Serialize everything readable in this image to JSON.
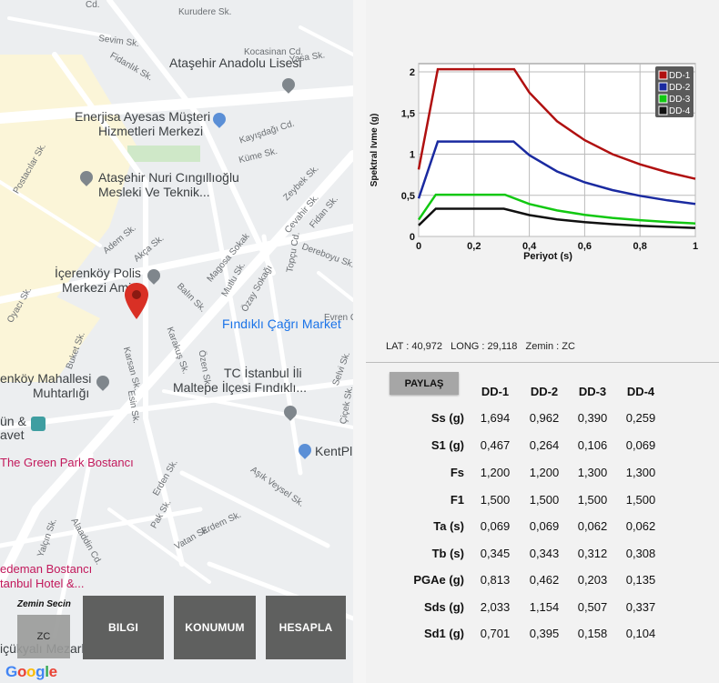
{
  "map": {
    "labels": {
      "kurudere": "Kurudere Sk.",
      "sevim": "Sevim Sk.",
      "fidanlik": "Fidanlık Sk.",
      "kocasinan": "Kocasinan Cd.",
      "yasa": "Yasa Sk.",
      "atasehir_lise": "Ataşehir Anadolu Lisesi",
      "enerjisa_1": "Enerjisa Ayesas Müşteri",
      "enerjisa_2": "Hizmetleri Merkezi",
      "kayisdagi": "Kayışdağı Cd.",
      "kume": "Küme Sk.",
      "postacilar": "Postacılar Sk.",
      "nuri_1": "Ataşehir Nuri Cıngıllıoğlu",
      "nuri_2": "Mesleki Ve Teknik...",
      "zeybek": "Zeybek Sk.",
      "cevahir": "Cevahir Sk.",
      "fidan": "Fidan Sk.",
      "adem": "Adem Sk.",
      "akca": "Akça Sk.",
      "magosa": "Magosa Sokak",
      "topcu": "Topçu Cd.",
      "dereboyu": "Dereboyu Sk.",
      "polis_1": "İçerenköy Polis",
      "polis_2": "Merkezi Amirl...",
      "mutlu": "Mutlu Sk.",
      "ozay": "Özay Sokağı",
      "balin": "Balın Sk.",
      "oyaci": "Oyacı Sk.",
      "evren": "Evren Cd.",
      "findikli_market": "Fındıklı Çağrı Market",
      "buket": "Buket Sk.",
      "karakus": "Karakuş Sk.",
      "karsan": "Karsan Sk.",
      "ozen": "Özen Sk.",
      "selvi": "Selvi Sk.",
      "tc_1": "TC İstanbul İli",
      "tc_2": "Maltepe İlçesi Fındıklı...",
      "cicek": "Çiçek Sk.",
      "muhtarlik_1": "enköy Mahallesi",
      "muhtarlik_2": "Muhtarlığı",
      "esin": "Esin Sk.",
      "kentplus": "KentPlı",
      "dugun_1": "ün &",
      "dugun_2": "avet",
      "green_park": "The Green Park Bostancı",
      "erden": "Erden Sk.",
      "asik_veysel": "Aşık Veysel Sk.",
      "pak": "Pak Sk.",
      "erdem": "Erdem Sk.",
      "vatan": "Vatan Sk.",
      "alaaddin": "Alaaddin Cd.",
      "yalcin": "Yalçın Sk.",
      "radisson_1": "edeman Bostancı",
      "radisson_2": "tanbul Hotel &...",
      "mezarlik": "içükyalı Mezarlığı",
      "cd_top": "Cd."
    },
    "zemin_secin": "Zemin Secin",
    "zemin_value": "ZC",
    "buttons": {
      "bilgi": "BILGI",
      "konumum": "KONUMUM",
      "hesapla": "HESAPLA"
    },
    "google": [
      "G",
      "o",
      "o",
      "g",
      "l",
      "e"
    ]
  },
  "chart_data": {
    "type": "line",
    "xlabel": "Periyot (s)",
    "ylabel": "Spektral Ivme (g)",
    "xlim": [
      0,
      1
    ],
    "ylim": [
      0,
      2.1
    ],
    "x_ticks": [
      "0",
      "0,2",
      "0,4",
      "0,6",
      "0,8",
      "1"
    ],
    "x_tick_values": [
      0,
      0.2,
      0.4,
      0.6,
      0.8,
      1
    ],
    "y_ticks": [
      "0",
      "0,5",
      "1",
      "1,5",
      "2"
    ],
    "y_tick_values": [
      0,
      0.5,
      1,
      1.5,
      2
    ],
    "grid": true,
    "legend_position": "top-right",
    "series": [
      {
        "name": "DD-1",
        "color": "#b01010",
        "points": [
          [
            0,
            0.813
          ],
          [
            0.069,
            2.033
          ],
          [
            0.345,
            2.033
          ],
          [
            0.4,
            1.75
          ],
          [
            0.5,
            1.4
          ],
          [
            0.6,
            1.17
          ],
          [
            0.7,
            1.0
          ],
          [
            0.8,
            0.876
          ],
          [
            0.9,
            0.779
          ],
          [
            1.0,
            0.701
          ]
        ]
      },
      {
        "name": "DD-2",
        "color": "#1a2aa0",
        "points": [
          [
            0,
            0.462
          ],
          [
            0.069,
            1.154
          ],
          [
            0.343,
            1.154
          ],
          [
            0.4,
            0.988
          ],
          [
            0.5,
            0.79
          ],
          [
            0.6,
            0.658
          ],
          [
            0.7,
            0.564
          ],
          [
            0.8,
            0.494
          ],
          [
            0.9,
            0.439
          ],
          [
            1.0,
            0.395
          ]
        ]
      },
      {
        "name": "DD-3",
        "color": "#12c812",
        "points": [
          [
            0,
            0.203
          ],
          [
            0.062,
            0.507
          ],
          [
            0.312,
            0.507
          ],
          [
            0.4,
            0.395
          ],
          [
            0.5,
            0.316
          ],
          [
            0.6,
            0.263
          ],
          [
            0.7,
            0.226
          ],
          [
            0.8,
            0.198
          ],
          [
            0.9,
            0.176
          ],
          [
            1.0,
            0.158
          ]
        ]
      },
      {
        "name": "DD-4",
        "color": "#111111",
        "points": [
          [
            0,
            0.135
          ],
          [
            0.062,
            0.337
          ],
          [
            0.308,
            0.337
          ],
          [
            0.4,
            0.26
          ],
          [
            0.5,
            0.208
          ],
          [
            0.6,
            0.173
          ],
          [
            0.7,
            0.149
          ],
          [
            0.8,
            0.13
          ],
          [
            0.9,
            0.116
          ],
          [
            1.0,
            0.104
          ]
        ]
      }
    ]
  },
  "location": {
    "lat_label": "LAT : ",
    "lat": "40,972",
    "long_label": "LONG : ",
    "long": "29,118",
    "zemin_label": "Zemin : ",
    "zemin": "ZC"
  },
  "share_label": "PAYLAŞ",
  "table": {
    "headers": [
      "DD-1",
      "DD-2",
      "DD-3",
      "DD-4"
    ],
    "rows": [
      {
        "label": "Ss (g)",
        "values": [
          "1,694",
          "0,962",
          "0,390",
          "0,259"
        ]
      },
      {
        "label": "S1 (g)",
        "values": [
          "0,467",
          "0,264",
          "0,106",
          "0,069"
        ]
      },
      {
        "label": "Fs",
        "values": [
          "1,200",
          "1,200",
          "1,300",
          "1,300"
        ]
      },
      {
        "label": "F1",
        "values": [
          "1,500",
          "1,500",
          "1,500",
          "1,500"
        ]
      },
      {
        "label": "Ta (s)",
        "values": [
          "0,069",
          "0,069",
          "0,062",
          "0,062"
        ]
      },
      {
        "label": "Tb (s)",
        "values": [
          "0,345",
          "0,343",
          "0,312",
          "0,308"
        ]
      },
      {
        "label": "PGAe (g)",
        "values": [
          "0,813",
          "0,462",
          "0,203",
          "0,135"
        ]
      },
      {
        "label": "Sds (g)",
        "values": [
          "2,033",
          "1,154",
          "0,507",
          "0,337"
        ]
      },
      {
        "label": "Sd1 (g)",
        "values": [
          "0,701",
          "0,395",
          "0,158",
          "0,104"
        ]
      }
    ]
  }
}
